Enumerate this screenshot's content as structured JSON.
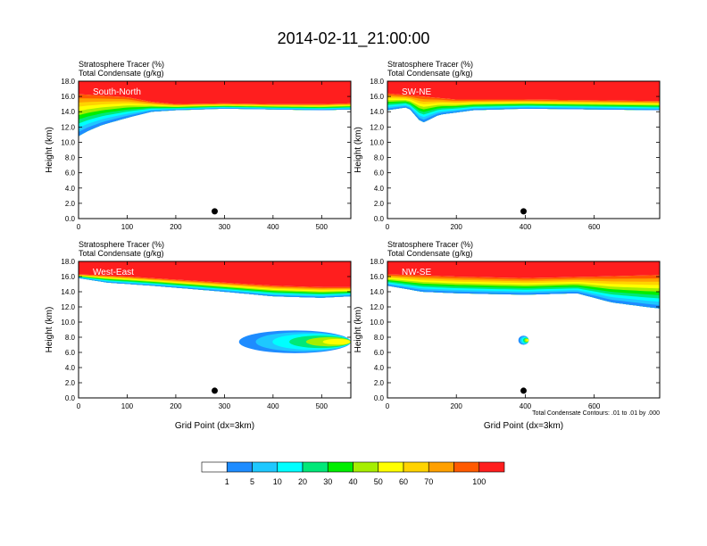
{
  "figure": {
    "title": "2014-02-11_21:00:00",
    "bottom_note": "Total Condensate Contours: .01 to .01 by .000"
  },
  "colorbar": {
    "colors": [
      "#ffffff",
      "#1e8cff",
      "#1ec8ff",
      "#00ffff",
      "#00e878",
      "#00ee00",
      "#a6ee00",
      "#ffff00",
      "#ffd300",
      "#ffa000",
      "#ff5a00",
      "#ff1e1e",
      "#ff0000"
    ],
    "labels": [
      "1",
      "5",
      "10",
      "20",
      "30",
      "40",
      "50",
      "60",
      "70",
      "100"
    ]
  },
  "chart_data": [
    {
      "type": "heatmap",
      "panel_label": "South-North",
      "title_line1": "Stratosphere Tracer   (%)",
      "title_line2": "Total Condensate   (g/kg)",
      "xlabel": "",
      "ylabel": "Height (km)",
      "xlim": [
        0,
        560
      ],
      "ylim": [
        0,
        18
      ],
      "xticks": [
        "0",
        "100",
        "200",
        "300",
        "400",
        "500"
      ],
      "xtick_values": [
        0,
        100,
        200,
        300,
        400,
        500
      ],
      "yticks": [
        "0.0",
        "2.0",
        "4.0",
        "6.0",
        "8.0",
        "10.0",
        "12.0",
        "14.0",
        "16.0",
        "18.0"
      ],
      "marker_x": 280,
      "tropopause": [
        [
          0,
          16.3
        ],
        [
          100,
          15.9
        ],
        [
          150,
          15.3
        ],
        [
          200,
          15.0
        ],
        [
          300,
          15.1
        ],
        [
          400,
          15.0
        ],
        [
          500,
          15.0
        ],
        [
          560,
          15.1
        ]
      ],
      "lower_boundary": [
        [
          0,
          10.8
        ],
        [
          20,
          11.5
        ],
        [
          50,
          12.3
        ],
        [
          100,
          13.2
        ],
        [
          150,
          14.0
        ],
        [
          200,
          14.2
        ],
        [
          300,
          14.4
        ],
        [
          400,
          14.3
        ],
        [
          500,
          14.2
        ],
        [
          560,
          14.3
        ]
      ],
      "blob": null
    },
    {
      "type": "heatmap",
      "panel_label": "SW-NE",
      "title_line1": "Stratosphere Tracer   (%)",
      "title_line2": "Total Condensate   (g/kg)",
      "xlabel": "",
      "ylabel": "Height (km)",
      "xlim": [
        0,
        790
      ],
      "ylim": [
        0,
        18
      ],
      "xticks": [
        "0",
        "200",
        "400",
        "600"
      ],
      "xtick_values": [
        0,
        200,
        400,
        600
      ],
      "yticks": [
        "0.0",
        "2.0",
        "4.0",
        "6.0",
        "8.0",
        "10.0",
        "12.0",
        "14.0",
        "16.0",
        "18.0"
      ],
      "marker_x": 395,
      "tropopause": [
        [
          0,
          16.4
        ],
        [
          100,
          16.0
        ],
        [
          200,
          15.6
        ],
        [
          400,
          15.6
        ],
        [
          600,
          15.5
        ],
        [
          790,
          15.4
        ]
      ],
      "lower_boundary": [
        [
          0,
          14.2
        ],
        [
          60,
          14.6
        ],
        [
          100,
          12.5
        ],
        [
          150,
          13.6
        ],
        [
          250,
          14.2
        ],
        [
          400,
          14.4
        ],
        [
          600,
          14.3
        ],
        [
          790,
          14.2
        ]
      ],
      "blob": null
    },
    {
      "type": "heatmap",
      "panel_label": "West-East",
      "title_line1": "Stratosphere Tracer   (%)",
      "title_line2": "Total Condensate   (g/kg)",
      "xlabel": "Grid Point (dx=3km)",
      "ylabel": "Height (km)",
      "xlim": [
        0,
        560
      ],
      "ylim": [
        0,
        18
      ],
      "xticks": [
        "0",
        "100",
        "200",
        "300",
        "400",
        "500"
      ],
      "xtick_values": [
        0,
        100,
        200,
        300,
        400,
        500
      ],
      "yticks": [
        "0.0",
        "2.0",
        "4.0",
        "6.0",
        "8.0",
        "10.0",
        "12.0",
        "14.0",
        "16.0",
        "18.0"
      ],
      "marker_x": 280,
      "tropopause": [
        [
          0,
          16.3
        ],
        [
          100,
          16.0
        ],
        [
          200,
          15.6
        ],
        [
          300,
          15.2
        ],
        [
          400,
          14.8
        ],
        [
          500,
          14.6
        ],
        [
          560,
          14.6
        ]
      ],
      "lower_boundary": [
        [
          0,
          15.8
        ],
        [
          60,
          15.2
        ],
        [
          150,
          14.8
        ],
        [
          300,
          14.0
        ],
        [
          400,
          13.4
        ],
        [
          500,
          13.2
        ],
        [
          560,
          13.4
        ]
      ],
      "blob": {
        "x0": 330,
        "x1": 560,
        "y_center": 7.4,
        "height": 3.0
      }
    },
    {
      "type": "heatmap",
      "panel_label": "NW-SE",
      "title_line1": "Stratosphere Tracer   (%)",
      "title_line2": "Total Condensate   (g/kg)",
      "xlabel": "Grid Point (dx=3km)",
      "ylabel": "Height (km)",
      "xlim": [
        0,
        790
      ],
      "ylim": [
        0,
        18
      ],
      "xticks": [
        "0",
        "200",
        "400",
        "600"
      ],
      "xtick_values": [
        0,
        200,
        400,
        600
      ],
      "yticks": [
        "0.0",
        "2.0",
        "4.0",
        "6.0",
        "8.0",
        "10.0",
        "12.0",
        "14.0",
        "16.0",
        "18.0"
      ],
      "marker_x": 395,
      "tropopause": [
        [
          0,
          16.3
        ],
        [
          200,
          16.0
        ],
        [
          400,
          15.8
        ],
        [
          600,
          16.0
        ],
        [
          790,
          16.2
        ]
      ],
      "lower_boundary": [
        [
          0,
          14.8
        ],
        [
          100,
          14.0
        ],
        [
          200,
          13.8
        ],
        [
          400,
          13.6
        ],
        [
          550,
          13.8
        ],
        [
          650,
          12.6
        ],
        [
          750,
          12.0
        ],
        [
          790,
          11.8
        ]
      ],
      "blob": {
        "x0": 380,
        "x1": 410,
        "y_center": 7.6,
        "height": 1.2
      }
    }
  ]
}
